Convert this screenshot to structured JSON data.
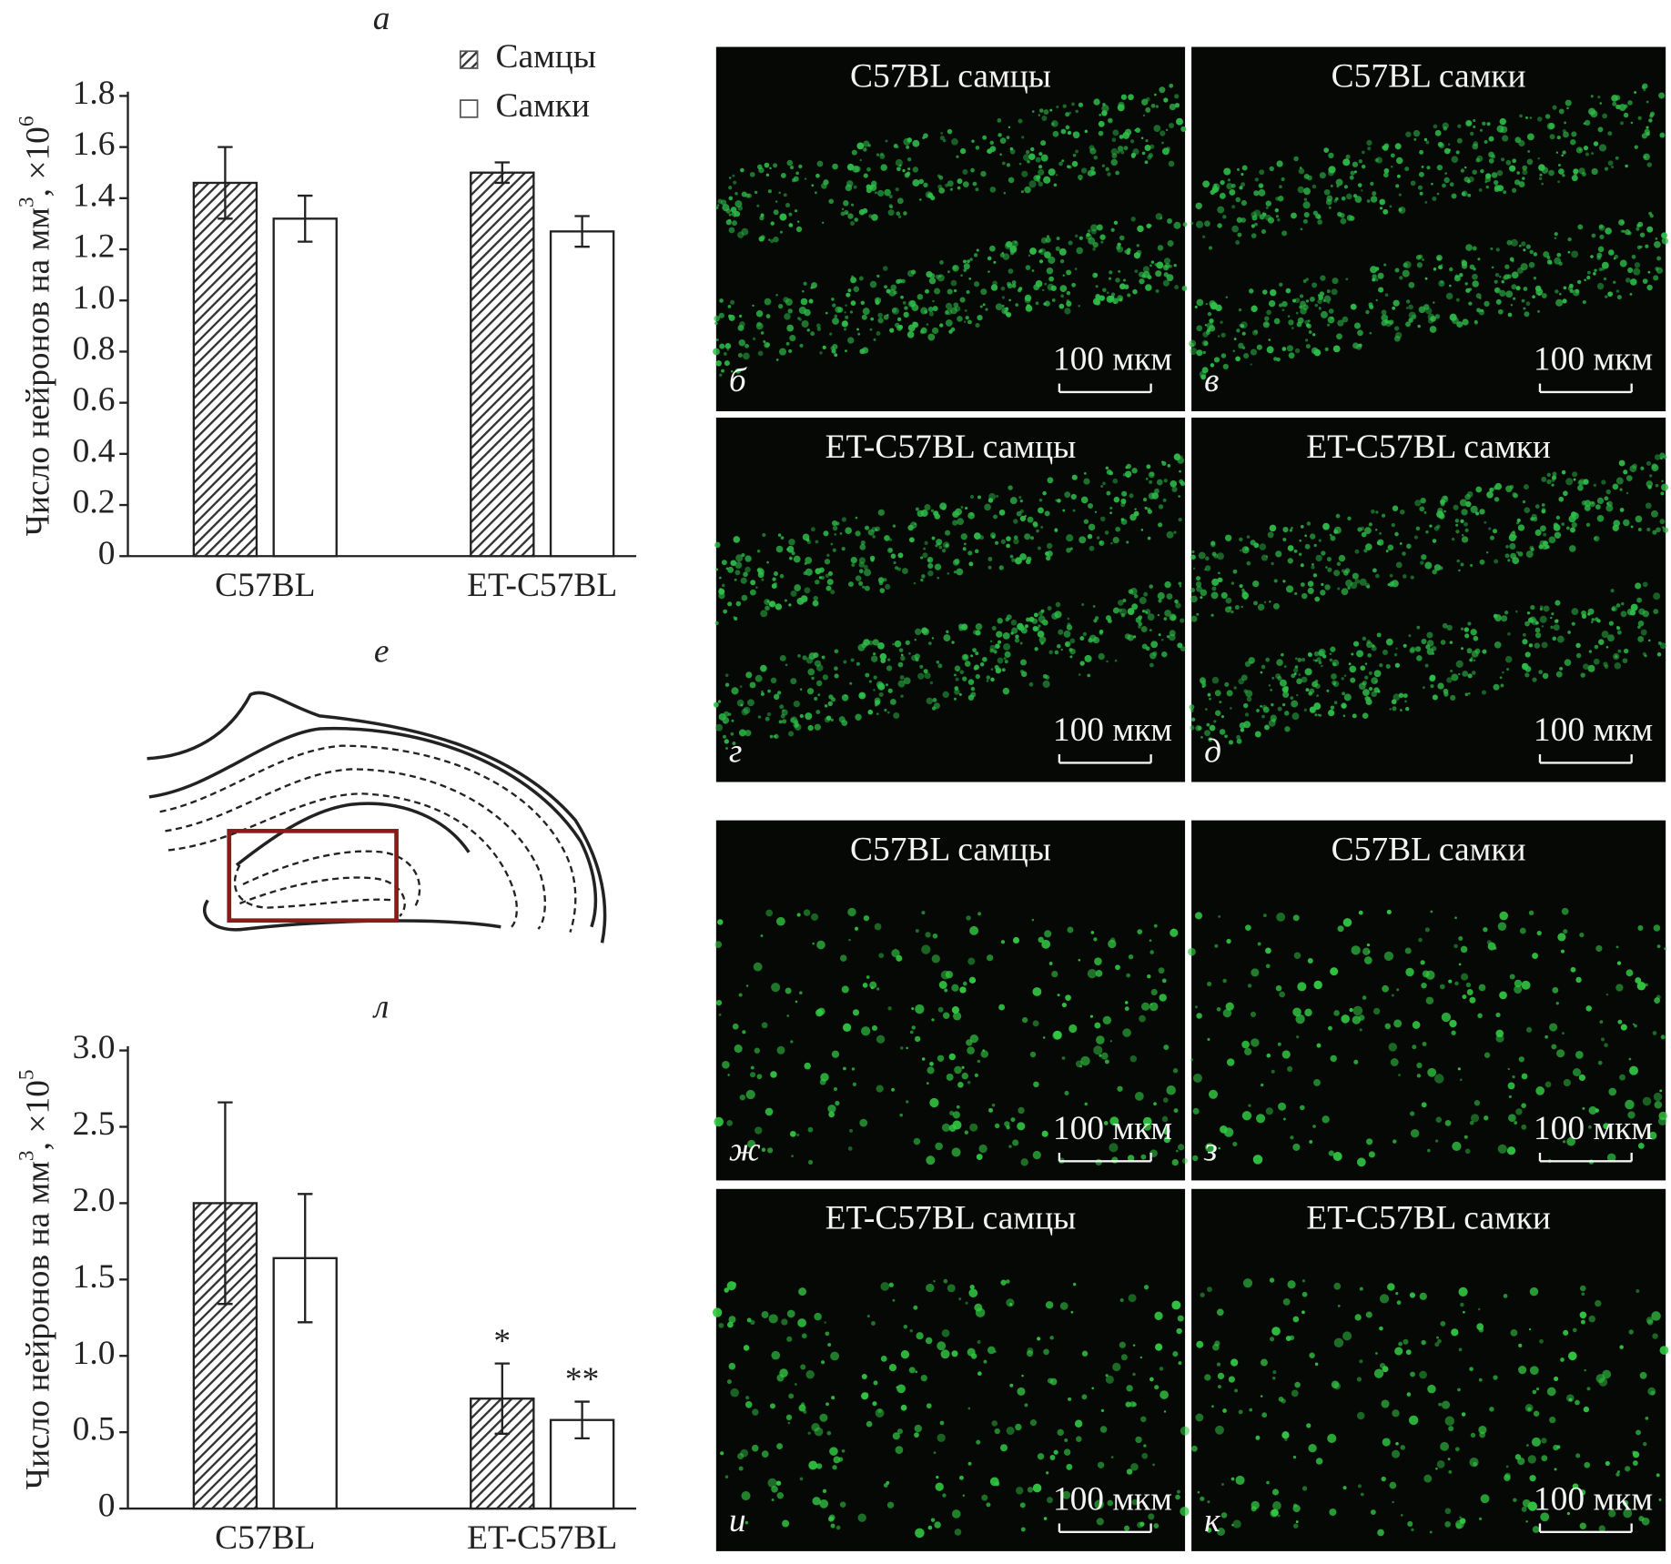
{
  "chart_data": [
    {
      "type": "bar",
      "title": "а",
      "ylabel": [
        "Число нейронов на мм",
        "3",
        ", ×10",
        "6"
      ],
      "categories": [
        "C57BL",
        "ET-C57BL"
      ],
      "series": [
        {
          "name": "Самцы",
          "color": "#333333",
          "hatch": true,
          "values": [
            1.46,
            1.5
          ],
          "errors": [
            0.14,
            0.04
          ]
        },
        {
          "name": "Самки",
          "color": "#ffffff",
          "hatch": false,
          "values": [
            1.32,
            1.27
          ],
          "errors": [
            0.09,
            0.06
          ]
        }
      ],
      "ylim": [
        0,
        1.8
      ],
      "yticks": [
        0,
        0.2,
        0.4,
        0.6,
        0.8,
        {
          "value": 1,
          "label": "1.0"
        },
        1.2,
        1.4,
        1.6,
        1.8
      ],
      "legend": "top-right"
    },
    {
      "type": "bar",
      "title": "л",
      "ylabel": [
        "Число нейронов на мм",
        "3",
        ", ×10",
        "5"
      ],
      "categories": [
        "C57BL",
        "ET-C57BL"
      ],
      "series": [
        {
          "color": "#333333",
          "hatch": true,
          "values": [
            2.0,
            0.72
          ],
          "errors": [
            0.66,
            0.23
          ]
        },
        {
          "color": "#ffffff",
          "hatch": false,
          "values": [
            1.64,
            0.58
          ],
          "errors": [
            0.42,
            0.12
          ]
        }
      ],
      "ylim": [
        0,
        3
      ],
      "yticks": [
        0,
        0.5,
        {
          "value": 1,
          "label": "1.0"
        },
        1.5,
        {
          "value": 2,
          "label": "2.0"
        },
        2.5,
        {
          "value": 3,
          "label": "3.0"
        }
      ],
      "annotations": [
        {
          "text": "*",
          "category": 1,
          "series": 0
        },
        {
          "text": "**",
          "category": 1,
          "series": 1
        }
      ]
    }
  ],
  "diagram": {
    "label": "е"
  },
  "panels": [
    {
      "title": "C57BL самцы",
      "letter": "б",
      "scale": "100 мкм"
    },
    {
      "title": "C57BL самки",
      "letter": "в",
      "scale": "100 мкм"
    },
    {
      "title": "ET-C57BL самцы",
      "letter": "г",
      "scale": "100 мкм"
    },
    {
      "title": "ET-C57BL самки",
      "letter": "д",
      "scale": "100 мкм"
    },
    {
      "title": "C57BL самцы",
      "letter": "ж",
      "scale": "100 мкм"
    },
    {
      "title": "C57BL самки",
      "letter": "з",
      "scale": "100 мкм"
    },
    {
      "title": "ET-C57BL самцы",
      "letter": "и",
      "scale": "100 мкм"
    },
    {
      "title": "ET-C57BL самки",
      "letter": "к",
      "scale": "100 мкм"
    }
  ]
}
